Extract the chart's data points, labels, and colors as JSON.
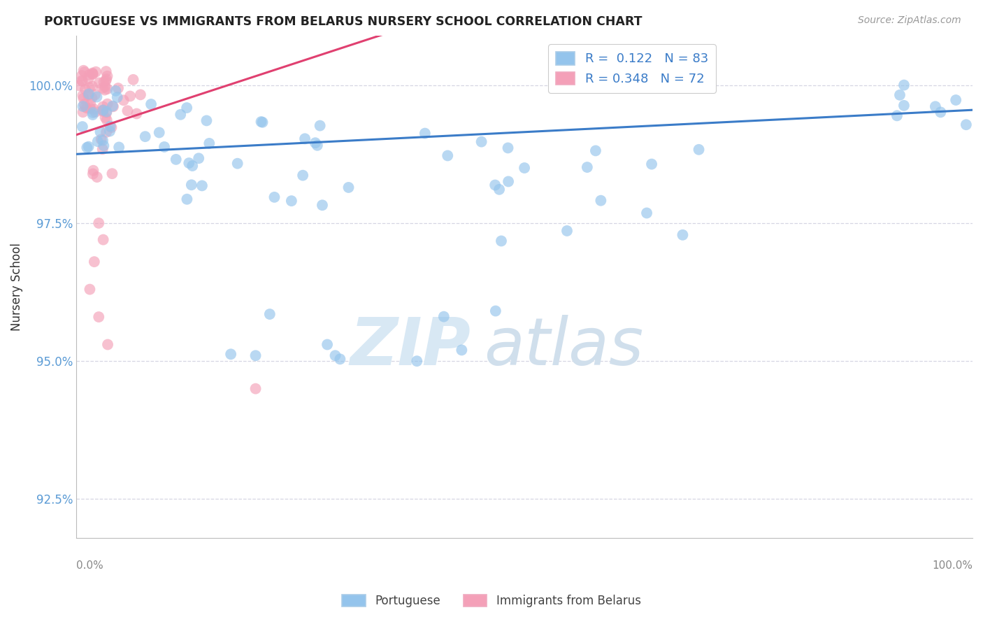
{
  "title": "PORTUGUESE VS IMMIGRANTS FROM BELARUS NURSERY SCHOOL CORRELATION CHART",
  "source": "Source: ZipAtlas.com",
  "ylabel": "Nursery School",
  "yticks": [
    92.5,
    95.0,
    97.5,
    100.0
  ],
  "ytick_labels": [
    "92.5%",
    "95.0%",
    "97.5%",
    "100.0%"
  ],
  "xlim": [
    0.0,
    100.0
  ],
  "ylim": [
    91.8,
    100.9
  ],
  "blue_R": 0.122,
  "blue_N": 83,
  "pink_R": 0.348,
  "pink_N": 72,
  "blue_color": "#94C4EC",
  "pink_color": "#F4A0B8",
  "blue_line_color": "#3B7CC8",
  "pink_line_color": "#E04070",
  "tick_color": "#5B9BD5",
  "legend_label_blue": "Portuguese",
  "legend_label_pink": "Immigrants from Belarus",
  "blue_line_x0": 0.0,
  "blue_line_y0": 98.75,
  "blue_line_x1": 100.0,
  "blue_line_y1": 99.55,
  "pink_line_x0": 0.0,
  "pink_line_y0": 99.1,
  "pink_line_x1": 32.0,
  "pink_line_y1": 100.8
}
